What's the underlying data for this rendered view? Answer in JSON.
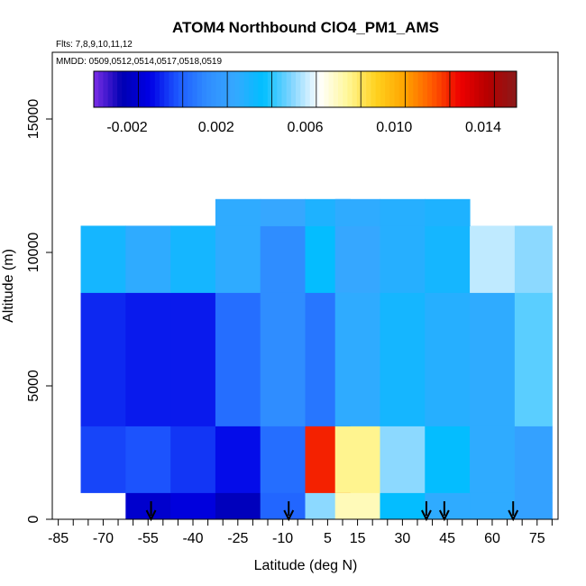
{
  "chart_data": {
    "type": "heatmap",
    "title": "ATOM4 Northbound ClO4_PM1_AMS",
    "flights_note": "Flts: 7,8,9,10,11,12",
    "dates_note": "MMDD: 0509,0512,0514,0517,0518,0519",
    "xlabel": "Latitude (deg N)",
    "ylabel": "Altitude (m)",
    "xlim": [
      -87,
      82
    ],
    "ylim": [
      0,
      17500
    ],
    "x_ticks": [
      -85,
      -70,
      -55,
      -40,
      -25,
      -10,
      5,
      15,
      30,
      45,
      60,
      75
    ],
    "x_ticks_minor": [
      -80,
      -75,
      -65,
      -60,
      -50,
      -45,
      -35,
      -30,
      -20,
      -15,
      -5,
      0,
      10,
      20,
      25,
      35,
      40,
      50,
      55,
      65,
      70,
      80
    ],
    "y_ticks": [
      0,
      5000,
      10000,
      15000
    ],
    "colorbar": {
      "min": -0.0035,
      "max": 0.0155,
      "tick_values": [
        -0.002,
        0.002,
        0.006,
        0.01,
        0.014
      ],
      "tick_labels": [
        "-0.002",
        "0.002",
        "0.006",
        "0.010",
        "0.014"
      ],
      "colors": [
        "#7b2ee6",
        "#0000b3",
        "#0000e6",
        "#1e5aff",
        "#2f8cff",
        "#36a8ff",
        "#00bfff",
        "#7fd4ff",
        "#ffffff",
        "#fff799",
        "#ffd21f",
        "#ffa500",
        "#ff5a00",
        "#ee0000",
        "#b40000",
        "#8b1a1a"
      ]
    },
    "heatmap_cells": [
      {
        "lat": -55,
        "alt": 250,
        "value": -0.0016
      },
      {
        "lat": -40,
        "alt": 250,
        "value": -0.0012
      },
      {
        "lat": -25,
        "alt": 250,
        "value": -0.002
      },
      {
        "lat": -10,
        "alt": 250,
        "value": 0.0006
      },
      {
        "lat": 5,
        "alt": 250,
        "value": 0.0055
      },
      {
        "lat": 15,
        "alt": 250,
        "value": 0.0075
      },
      {
        "lat": 30,
        "alt": 250,
        "value": 0.004
      },
      {
        "lat": 45,
        "alt": 250,
        "value": 0.003
      },
      {
        "lat": 60,
        "alt": 250,
        "value": 0.003
      },
      {
        "lat": 75,
        "alt": 250,
        "value": 0.0025
      },
      {
        "lat": -70,
        "alt": 2000,
        "value": 0.0
      },
      {
        "lat": -55,
        "alt": 2000,
        "value": 0.0002
      },
      {
        "lat": -40,
        "alt": 2000,
        "value": -0.0002
      },
      {
        "lat": -25,
        "alt": 2000,
        "value": -0.0008
      },
      {
        "lat": -10,
        "alt": 2000,
        "value": 0.0008
      },
      {
        "lat": 5,
        "alt": 2000,
        "value": 0.0125
      },
      {
        "lat": 15,
        "alt": 2000,
        "value": 0.008
      },
      {
        "lat": 30,
        "alt": 2000,
        "value": 0.0055
      },
      {
        "lat": 45,
        "alt": 2000,
        "value": 0.004
      },
      {
        "lat": 60,
        "alt": 2000,
        "value": 0.003
      },
      {
        "lat": 75,
        "alt": 2000,
        "value": 0.0025
      },
      {
        "lat": -70,
        "alt": 6000,
        "value": -0.0004
      },
      {
        "lat": -55,
        "alt": 6000,
        "value": -0.0006
      },
      {
        "lat": -40,
        "alt": 6000,
        "value": -0.0006
      },
      {
        "lat": -25,
        "alt": 6000,
        "value": 0.0008
      },
      {
        "lat": -10,
        "alt": 6000,
        "value": 0.0016
      },
      {
        "lat": 5,
        "alt": 6000,
        "value": 0.001
      },
      {
        "lat": 15,
        "alt": 6000,
        "value": 0.003
      },
      {
        "lat": 30,
        "alt": 6000,
        "value": 0.0036
      },
      {
        "lat": 45,
        "alt": 6000,
        "value": 0.0032
      },
      {
        "lat": 60,
        "alt": 6000,
        "value": 0.003
      },
      {
        "lat": 75,
        "alt": 6000,
        "value": 0.005
      },
      {
        "lat": -70,
        "alt": 10000,
        "value": 0.0036
      },
      {
        "lat": -55,
        "alt": 10000,
        "value": 0.003
      },
      {
        "lat": -40,
        "alt": 10000,
        "value": 0.0036
      },
      {
        "lat": -25,
        "alt": 10000,
        "value": 0.003
      },
      {
        "lat": -10,
        "alt": 10000,
        "value": 0.0016
      },
      {
        "lat": 5,
        "alt": 10000,
        "value": 0.004
      },
      {
        "lat": 15,
        "alt": 10000,
        "value": 0.0028
      },
      {
        "lat": 30,
        "alt": 10000,
        "value": 0.0032
      },
      {
        "lat": 45,
        "alt": 10000,
        "value": 0.0036
      },
      {
        "lat": 60,
        "alt": 10000,
        "value": 0.006
      },
      {
        "lat": 75,
        "alt": 10000,
        "value": 0.0055
      },
      {
        "lat": -25,
        "alt": 11500,
        "value": 0.003
      },
      {
        "lat": -10,
        "alt": 11500,
        "value": 0.0028
      },
      {
        "lat": 5,
        "alt": 11500,
        "value": 0.0034
      },
      {
        "lat": 15,
        "alt": 11500,
        "value": 0.003
      },
      {
        "lat": 30,
        "alt": 11500,
        "value": 0.0032
      },
      {
        "lat": 45,
        "alt": 11500,
        "value": 0.0034
      }
    ],
    "flight_arrow_latitudes": [
      -54,
      -8,
      38,
      44,
      67
    ]
  }
}
